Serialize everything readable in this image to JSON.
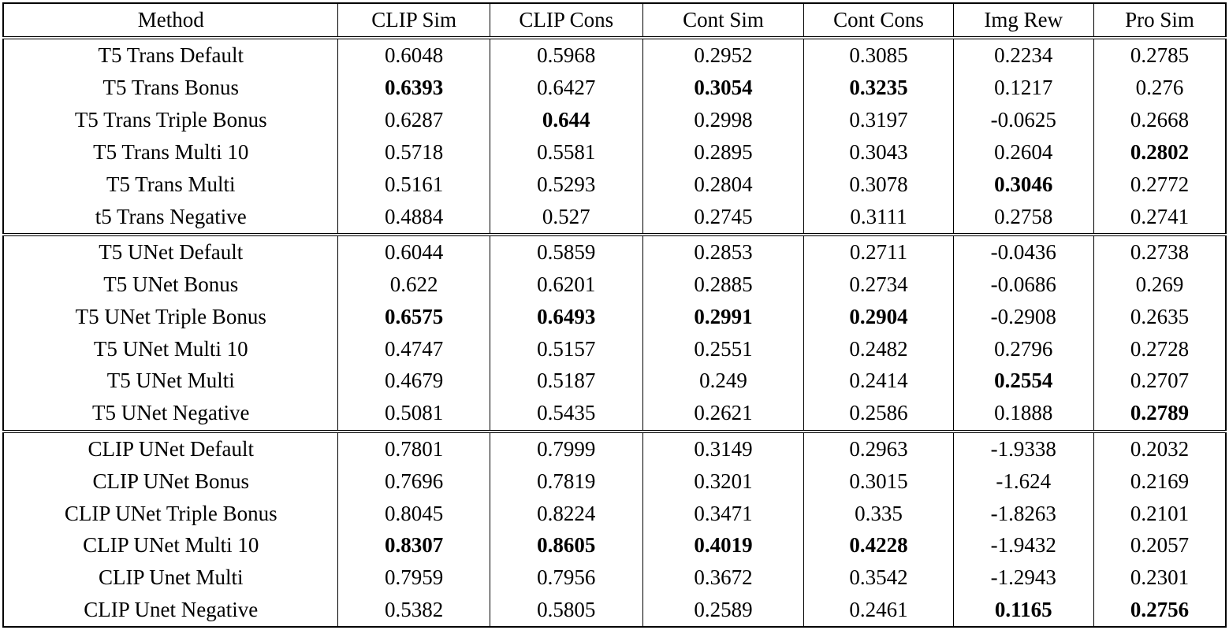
{
  "colors": {
    "text": "#000000",
    "background": "#ffffff",
    "border": "#000000"
  },
  "table": {
    "columns": [
      "Method",
      "CLIP Sim",
      "CLIP Cons",
      "Cont Sim",
      "Cont Cons",
      "Img Rew",
      "Pro Sim"
    ],
    "groups": [
      {
        "rows": [
          {
            "method": "T5 Trans Default",
            "values": [
              "0.6048",
              "0.5968",
              "0.2952",
              "0.3085",
              "0.2234",
              "0.2785"
            ],
            "bold": []
          },
          {
            "method": "T5 Trans Bonus",
            "values": [
              "0.6393",
              "0.6427",
              "0.3054",
              "0.3235",
              "0.1217",
              "0.276"
            ],
            "bold": [
              0,
              2,
              3
            ]
          },
          {
            "method": "T5 Trans Triple Bonus",
            "values": [
              "0.6287",
              "0.644",
              "0.2998",
              "0.3197",
              "-0.0625",
              "0.2668"
            ],
            "bold": [
              1
            ]
          },
          {
            "method": "T5 Trans Multi 10",
            "values": [
              "0.5718",
              "0.5581",
              "0.2895",
              "0.3043",
              "0.2604",
              "0.2802"
            ],
            "bold": [
              5
            ]
          },
          {
            "method": "T5 Trans Multi",
            "values": [
              "0.5161",
              "0.5293",
              "0.2804",
              "0.3078",
              "0.3046",
              "0.2772"
            ],
            "bold": [
              4
            ]
          },
          {
            "method": "t5 Trans Negative",
            "values": [
              "0.4884",
              "0.527",
              "0.2745",
              "0.3111",
              "0.2758",
              "0.2741"
            ],
            "bold": []
          }
        ]
      },
      {
        "rows": [
          {
            "method": "T5 UNet Default",
            "values": [
              "0.6044",
              "0.5859",
              "0.2853",
              "0.2711",
              "-0.0436",
              "0.2738"
            ],
            "bold": []
          },
          {
            "method": "T5 UNet Bonus",
            "values": [
              "0.622",
              "0.6201",
              "0.2885",
              "0.2734",
              "-0.0686",
              "0.269"
            ],
            "bold": []
          },
          {
            "method": "T5 UNet Triple Bonus",
            "values": [
              "0.6575",
              "0.6493",
              "0.2991",
              "0.2904",
              "-0.2908",
              "0.2635"
            ],
            "bold": [
              0,
              1,
              2,
              3
            ]
          },
          {
            "method": "T5 UNet Multi 10",
            "values": [
              "0.4747",
              "0.5157",
              "0.2551",
              "0.2482",
              "0.2796",
              "0.2728"
            ],
            "bold": []
          },
          {
            "method": "T5 UNet Multi",
            "values": [
              "0.4679",
              "0.5187",
              "0.249",
              "0.2414",
              "0.2554",
              "0.2707"
            ],
            "bold": [
              4
            ]
          },
          {
            "method": "T5 UNet Negative",
            "values": [
              "0.5081",
              "0.5435",
              "0.2621",
              "0.2586",
              "0.1888",
              "0.2789"
            ],
            "bold": [
              5
            ]
          }
        ]
      },
      {
        "rows": [
          {
            "method": "CLIP UNet Default",
            "values": [
              "0.7801",
              "0.7999",
              "0.3149",
              "0.2963",
              "-1.9338",
              "0.2032"
            ],
            "bold": []
          },
          {
            "method": "CLIP UNet Bonus",
            "values": [
              "0.7696",
              "0.7819",
              "0.3201",
              "0.3015",
              "-1.624",
              "0.2169"
            ],
            "bold": []
          },
          {
            "method": "CLIP UNet Triple Bonus",
            "values": [
              "0.8045",
              "0.8224",
              "0.3471",
              "0.335",
              "-1.8263",
              "0.2101"
            ],
            "bold": []
          },
          {
            "method": "CLIP UNet Multi 10",
            "values": [
              "0.8307",
              "0.8605",
              "0.4019",
              "0.4228",
              "-1.9432",
              "0.2057"
            ],
            "bold": [
              0,
              1,
              2,
              3
            ]
          },
          {
            "method": "CLIP Unet Multi",
            "values": [
              "0.7959",
              "0.7956",
              "0.3672",
              "0.3542",
              "-1.2943",
              "0.2301"
            ],
            "bold": []
          },
          {
            "method": "CLIP Unet Negative",
            "values": [
              "0.5382",
              "0.5805",
              "0.2589",
              "0.2461",
              "0.1165",
              "0.2756"
            ],
            "bold": [
              4,
              5
            ]
          }
        ]
      }
    ]
  }
}
